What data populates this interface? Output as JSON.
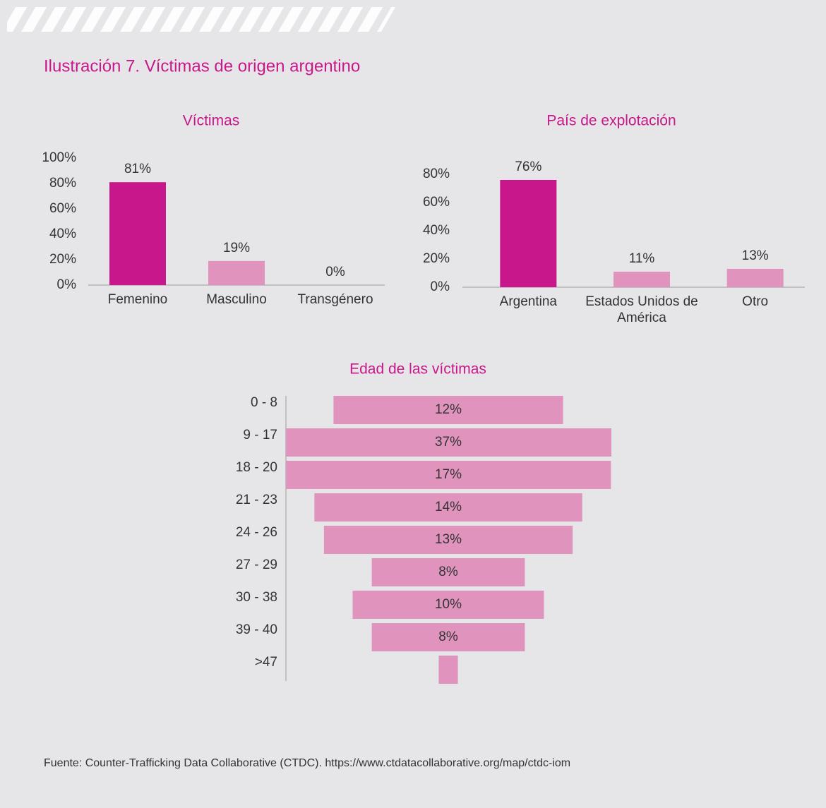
{
  "title": "Ilustración 7. Víctimas de origen argentino",
  "source": "Fuente: Counter-Trafficking Data Collaborative (CTDC). https://www.ctdatacollaborative.org/map/ctdc-iom",
  "chart_data": [
    {
      "type": "bar",
      "title": "Víctimas",
      "categories": [
        "Femenino",
        "Masculino",
        "Transgénero"
      ],
      "values": [
        81,
        19,
        0
      ],
      "value_labels": [
        "81%",
        "19%",
        "0%"
      ],
      "colors": [
        "#c8178a",
        "#e094bd",
        "#e094bd"
      ],
      "ylim": [
        0,
        100
      ],
      "yticks": [
        {
          "value": 0,
          "label": "0%"
        },
        {
          "value": 20,
          "label": "20%"
        },
        {
          "value": 40,
          "label": "40%"
        },
        {
          "value": 60,
          "label": "60%"
        },
        {
          "value": 80,
          "label": "80%"
        },
        {
          "value": 100,
          "label": "100%"
        }
      ]
    },
    {
      "type": "bar",
      "title": "País de explotación",
      "categories": [
        "Argentina",
        "Estados Unidos de América",
        "Otro"
      ],
      "values": [
        76,
        11,
        13
      ],
      "value_labels": [
        "76%",
        "11%",
        "13%"
      ],
      "colors": [
        "#c8178a",
        "#e094bd",
        "#e094bd"
      ],
      "ylim": [
        0,
        80
      ],
      "yticks": [
        {
          "value": 0,
          "label": "0%"
        },
        {
          "value": 20,
          "label": "20%"
        },
        {
          "value": 40,
          "label": "40%"
        },
        {
          "value": 60,
          "label": "60%"
        },
        {
          "value": 80,
          "label": "80%"
        }
      ]
    },
    {
      "type": "funnel",
      "title": "Edad de las víctimas",
      "categories": [
        "0 - 8",
        "9 - 17",
        "18 - 20",
        "21 - 23",
        "24 - 26",
        "27 - 29",
        "30 - 38",
        "39 - 40",
        ">47"
      ],
      "values": [
        12,
        37,
        17,
        14,
        13,
        8,
        10,
        8,
        1
      ],
      "value_labels": [
        "12%",
        "37%",
        "17%",
        "14%",
        "13%",
        "8%",
        "10%",
        "8%",
        null
      ],
      "color": "#e094bd"
    }
  ]
}
